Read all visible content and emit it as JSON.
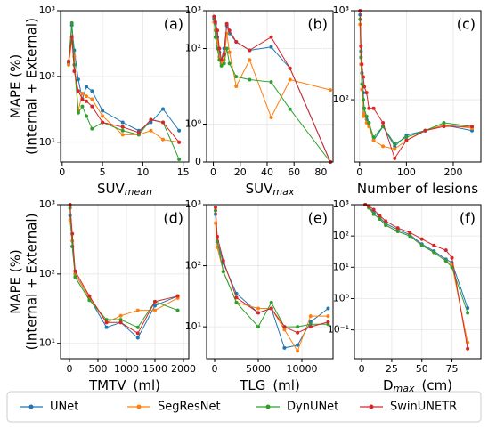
{
  "chart_data": [
    {
      "type": "line",
      "label": "(a)",
      "ylabel": [
        "MAPE (%)",
        "(Internal + External)"
      ],
      "xlabel": {
        "main": "SUV",
        "sub": "mean"
      },
      "x": [
        0.8,
        1.2,
        1.5,
        2,
        2.5,
        3,
        3.7,
        5,
        7.5,
        9.5,
        11,
        12.5,
        14.5
      ],
      "xlim": [
        -0.2,
        15.7
      ],
      "xticks": [
        0,
        5,
        10,
        15
      ],
      "yscale": "log",
      "ylim": [
        5,
        1000
      ],
      "yticks": [
        {
          "value": 10,
          "label": "10¹"
        },
        {
          "value": 100,
          "label": "10²"
        },
        {
          "value": 1000,
          "label": "10³"
        }
      ],
      "grid": true,
      "series": [
        {
          "name": "UNet",
          "color": "#1f77b4",
          "values": [
            160,
            600,
            250,
            90,
            45,
            70,
            60,
            30,
            20,
            15,
            20,
            32,
            15
          ]
        },
        {
          "name": "SegResNet",
          "color": "#ff7f0e",
          "values": [
            150,
            350,
            200,
            30,
            55,
            50,
            45,
            25,
            13,
            13,
            15,
            11,
            10
          ]
        },
        {
          "name": "DynUNet",
          "color": "#2ca02c",
          "values": [
            170,
            650,
            150,
            28,
            35,
            25,
            16,
            20,
            15,
            13,
            22,
            20,
            5.5
          ]
        },
        {
          "name": "SwinUNETR",
          "color": "#d62728",
          "values": [
            170,
            400,
            120,
            60,
            45,
            42,
            35,
            20,
            17,
            14,
            22,
            20,
            10
          ]
        }
      ]
    },
    {
      "type": "line",
      "label": "(b)",
      "xlabel": {
        "main": "SUV",
        "sub": "max"
      },
      "x": [
        0.5,
        1.5,
        3,
        4.5,
        6,
        8,
        10,
        12,
        17,
        27,
        43,
        57,
        87
      ],
      "xlim": [
        -5,
        89
      ],
      "xticks": [
        0,
        20,
        40,
        60,
        80
      ],
      "yscale": "symlog",
      "ylim": [
        0,
        1000
      ],
      "yticks": [
        0,
        {
          "value": 1,
          "label": "10⁰"
        },
        {
          "value": 100,
          "label": "10²"
        },
        {
          "value": 1000,
          "label": "10³"
        }
      ],
      "grid": true,
      "series": [
        {
          "name": "UNet",
          "color": "#1f77b4",
          "values": [
            600,
            450,
            200,
            80,
            50,
            100,
            400,
            250,
            150,
            90,
            110,
            30,
            0
          ]
        },
        {
          "name": "SegResNet",
          "color": "#ff7f0e",
          "values": [
            500,
            300,
            150,
            60,
            40,
            50,
            250,
            80,
            10,
            50,
            1.5,
            15,
            8
          ]
        },
        {
          "name": "DynUNet",
          "color": "#2ca02c",
          "values": [
            700,
            200,
            100,
            50,
            35,
            40,
            100,
            40,
            18,
            15,
            13,
            2.5,
            0
          ]
        },
        {
          "name": "SwinUNETR",
          "color": "#d62728",
          "values": [
            700,
            500,
            300,
            100,
            50,
            70,
            450,
            300,
            150,
            90,
            200,
            30,
            0
          ]
        }
      ]
    },
    {
      "type": "line",
      "label": "(c)",
      "xlabel": {
        "main": "Number of lesions"
      },
      "x": [
        1,
        3,
        5,
        8,
        10,
        15,
        20,
        30,
        50,
        75,
        100,
        140,
        180,
        240
      ],
      "xlim": [
        -11,
        259
      ],
      "xticks": [
        0,
        100,
        200
      ],
      "yscale": "log",
      "ylim": [
        20,
        1000
      ],
      "yticks": [
        {
          "value": 100,
          "label": "10²"
        },
        {
          "value": 1000,
          "label": "10³"
        }
      ],
      "grid": true,
      "series": [
        {
          "name": "UNet",
          "color": "#1f77b4",
          "values": [
            900,
            350,
            200,
            120,
            70,
            60,
            55,
            35,
            50,
            30,
            40,
            45,
            52,
            45
          ]
        },
        {
          "name": "SegResNet",
          "color": "#ff7f0e",
          "values": [
            700,
            250,
            130,
            65,
            70,
            55,
            50,
            35,
            30,
            28,
            35,
            45,
            52,
            48
          ]
        },
        {
          "name": "DynUNet",
          "color": "#2ca02c",
          "values": [
            800,
            300,
            150,
            100,
            80,
            65,
            55,
            38,
            50,
            32,
            38,
            45,
            55,
            50
          ]
        },
        {
          "name": "SwinUNETR",
          "color": "#d62728",
          "values": [
            1000,
            400,
            250,
            180,
            140,
            120,
            80,
            80,
            55,
            22,
            35,
            45,
            50,
            50
          ]
        }
      ]
    },
    {
      "type": "line",
      "label": "(d)",
      "ylabel": [
        "MAPE (%)",
        "(Internal + External)"
      ],
      "xlabel": {
        "main": "TMTV",
        "unit": "(ml)"
      },
      "x": [
        10,
        50,
        100,
        350,
        650,
        900,
        1200,
        1500,
        1900
      ],
      "xlim": [
        -156,
        2094
      ],
      "xticks": [
        0,
        500,
        1000,
        1500,
        2000
      ],
      "yscale": "log",
      "ylim": [
        6,
        1000
      ],
      "yticks": [
        {
          "value": 10,
          "label": "10¹"
        },
        {
          "value": 100,
          "label": "10²"
        },
        {
          "value": 1000,
          "label": "10³"
        }
      ],
      "grid": true,
      "series": [
        {
          "name": "UNet",
          "color": "#1f77b4",
          "values": [
            700,
            250,
            100,
            45,
            17,
            20,
            12,
            35,
            48
          ]
        },
        {
          "name": "SegResNet",
          "color": "#ff7f0e",
          "values": [
            600,
            300,
            100,
            45,
            20,
            25,
            30,
            30,
            45
          ]
        },
        {
          "name": "DynUNet",
          "color": "#2ca02c",
          "values": [
            900,
            250,
            90,
            42,
            22,
            22,
            17,
            40,
            30
          ]
        },
        {
          "name": "SwinUNETR",
          "color": "#d62728",
          "values": [
            1000,
            380,
            110,
            48,
            20,
            20,
            14,
            40,
            48
          ]
        }
      ]
    },
    {
      "type": "line",
      "label": "(e)",
      "xlabel": {
        "main": "TLG",
        "unit": "(ml)"
      },
      "x": [
        100,
        300,
        1000,
        2500,
        5000,
        6500,
        8000,
        9500,
        11000,
        13000
      ],
      "xlim": [
        -920,
        13570
      ],
      "xticks": [
        0,
        5000,
        10000
      ],
      "yscale": "log",
      "ylim": [
        3,
        1000
      ],
      "yticks": [
        {
          "value": 10,
          "label": "10¹"
        },
        {
          "value": 100,
          "label": "10²"
        },
        {
          "value": 1000,
          "label": "10³"
        }
      ],
      "grid": true,
      "series": [
        {
          "name": "UNet",
          "color": "#1f77b4",
          "values": [
            700,
            250,
            110,
            35,
            17,
            20,
            4.5,
            5,
            12,
            20
          ]
        },
        {
          "name": "SegResNet",
          "color": "#ff7f0e",
          "values": [
            500,
            200,
            80,
            25,
            20,
            20,
            9,
            4,
            15,
            15
          ]
        },
        {
          "name": "DynUNet",
          "color": "#2ca02c",
          "values": [
            800,
            250,
            80,
            25,
            10,
            25,
            10,
            10,
            11,
            11
          ]
        },
        {
          "name": "SwinUNETR",
          "color": "#d62728",
          "values": [
            900,
            300,
            120,
            30,
            17,
            20,
            10,
            8,
            10,
            12
          ]
        }
      ]
    },
    {
      "type": "line",
      "label": "(f)",
      "xlabel": {
        "main": "D",
        "sub": "max",
        "unit": "(cm)"
      },
      "x": [
        3,
        6,
        10,
        15,
        20,
        30,
        40,
        50,
        60,
        70,
        75,
        88
      ],
      "xlim": [
        -6,
        99
      ],
      "xticks": [
        0,
        25,
        50,
        75
      ],
      "yscale": "log",
      "ylim": [
        0.012,
        1000
      ],
      "yticks": [
        {
          "value": 0.1,
          "label": "10⁻¹"
        },
        {
          "value": 1,
          "label": "10⁰"
        },
        {
          "value": 10,
          "label": "10¹"
        },
        {
          "value": 100,
          "label": "10²"
        },
        {
          "value": 1000,
          "label": "10³"
        }
      ],
      "grid": true,
      "series": [
        {
          "name": "UNet",
          "color": "#1f77b4",
          "values": [
            1000,
            800,
            600,
            400,
            250,
            160,
            110,
            55,
            33,
            18,
            14,
            0.5
          ]
        },
        {
          "name": "SegResNet",
          "color": "#ff7f0e",
          "values": [
            1000,
            800,
            500,
            350,
            220,
            140,
            100,
            50,
            30,
            16,
            12,
            0.04
          ]
        },
        {
          "name": "DynUNet",
          "color": "#2ca02c",
          "values": [
            1000,
            800,
            500,
            350,
            220,
            140,
            100,
            50,
            30,
            16,
            10,
            0.35
          ]
        },
        {
          "name": "SwinUNETR",
          "color": "#d62728",
          "values": [
            1000,
            900,
            700,
            450,
            300,
            180,
            130,
            80,
            50,
            35,
            20,
            0.025
          ]
        }
      ]
    }
  ]
}
